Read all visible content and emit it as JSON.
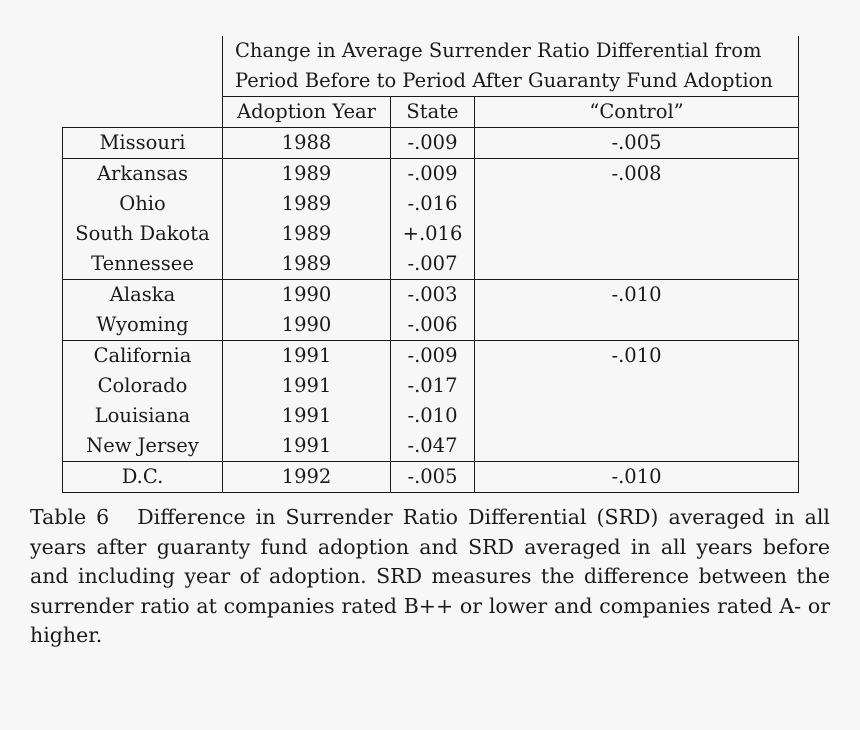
{
  "table": {
    "header": {
      "title_line1": "Change in Average Surrender Ratio Differential from",
      "title_line2": "Period Before to Period After Guaranty Fund Adoption",
      "col_year": "Adoption Year",
      "col_state": "State",
      "col_control": "“Control”"
    },
    "groups": [
      {
        "control": "-.005",
        "rows": [
          {
            "name": "Missouri",
            "year": "1988",
            "state": "-.009"
          }
        ]
      },
      {
        "control": "-.008",
        "rows": [
          {
            "name": "Arkansas",
            "year": "1989",
            "state": "-.009"
          },
          {
            "name": "Ohio",
            "year": "1989",
            "state": "-.016"
          },
          {
            "name": "South Dakota",
            "year": "1989",
            "state": "+.016"
          },
          {
            "name": "Tennessee",
            "year": "1989",
            "state": "-.007"
          }
        ]
      },
      {
        "control": "-.010",
        "rows": [
          {
            "name": "Alaska",
            "year": "1990",
            "state": "-.003"
          },
          {
            "name": "Wyoming",
            "year": "1990",
            "state": "-.006"
          }
        ]
      },
      {
        "control": "-.010",
        "rows": [
          {
            "name": "California",
            "year": "1991",
            "state": "-.009"
          },
          {
            "name": "Colorado",
            "year": "1991",
            "state": "-.017"
          },
          {
            "name": "Louisiana",
            "year": "1991",
            "state": "-.010"
          },
          {
            "name": "New Jersey",
            "year": "1991",
            "state": "-.047"
          }
        ]
      },
      {
        "control": "-.010",
        "rows": [
          {
            "name": "D.C.",
            "year": "1992",
            "state": "-.005"
          }
        ]
      }
    ]
  },
  "caption": {
    "label": "Table 6",
    "text": "Difference in Surrender Ratio Differential (SRD) averaged in all years after guaranty fund adoption and SRD averaged in all years before and including year of adoption. SRD measures the difference between the surrender ratio at companies rated B++ or lower and companies rated A- or higher."
  }
}
